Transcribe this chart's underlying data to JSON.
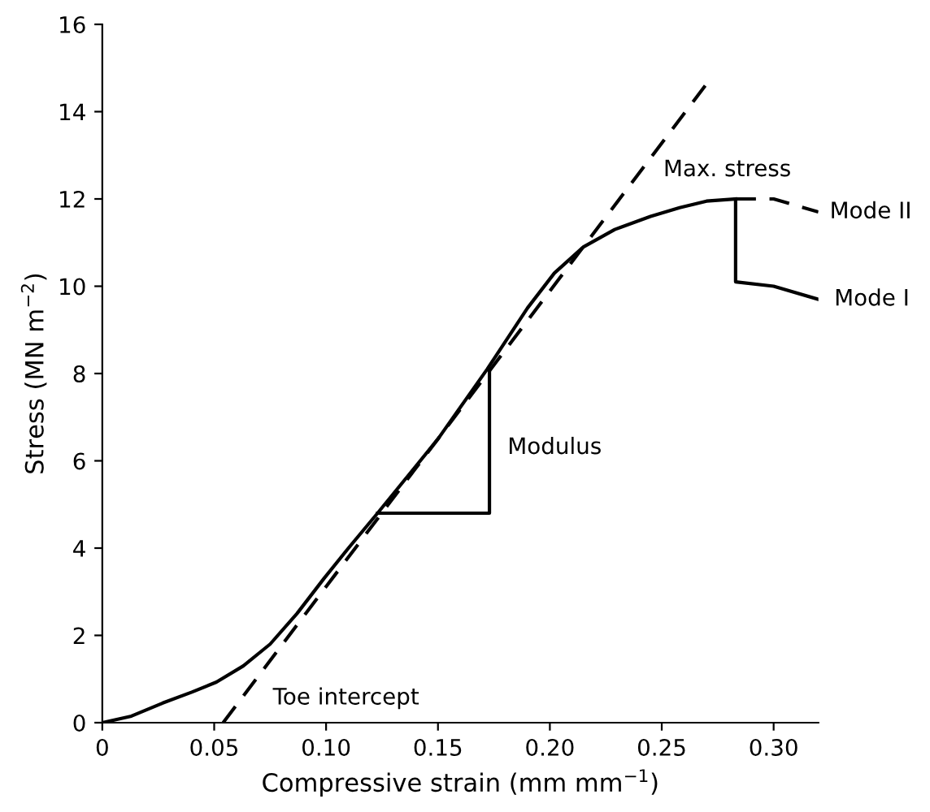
{
  "chart_data": {
    "type": "line",
    "xlabel": "Compressive strain (mm mm$^{−1}$)",
    "ylabel": "Stress (MN m$^{−2}$)",
    "xlim": [
      0,
      0.32
    ],
    "ylim": [
      0,
      16
    ],
    "xticks": [
      0,
      {
        "value": 0.05,
        "label": "0.05"
      },
      {
        "value": 0.1,
        "label": "0.10"
      },
      {
        "value": 0.15,
        "label": "0.15"
      },
      {
        "value": 0.2,
        "label": "0.20"
      },
      {
        "value": 0.25,
        "label": "0.25"
      },
      {
        "value": 0.3,
        "label": "0.30"
      }
    ],
    "yticks": [
      0,
      2,
      4,
      6,
      8,
      10,
      12,
      14,
      16
    ],
    "marker": "none",
    "series": [
      {
        "color": "#000000",
        "line_style": "solid",
        "x": [
          0,
          0.013,
          0.027,
          0.04,
          0.051,
          0.063,
          0.075,
          0.087,
          0.099,
          0.11,
          0.123,
          0.15,
          0.172,
          0.19,
          0.202,
          0.215,
          0.229,
          0.245,
          0.258,
          0.27,
          0.283
        ],
        "values": [
          0,
          0.15,
          0.45,
          0.7,
          0.93,
          1.3,
          1.8,
          2.5,
          3.3,
          4.0,
          4.8,
          6.5,
          8.1,
          9.5,
          10.3,
          10.9,
          11.3,
          11.6,
          11.8,
          11.95,
          12.0
        ]
      },
      {
        "color": "#000000",
        "line_style": "dashed",
        "x": [
          0.054,
          0.271
        ],
        "values": [
          0,
          14.7
        ]
      },
      {
        "color": "#000000",
        "line_style": "dashed",
        "x": [
          0.283,
          0.3,
          0.32
        ],
        "values": [
          12.0,
          12.0,
          11.7
        ]
      },
      {
        "color": "#000000",
        "line_style": "solid",
        "x": [
          0.283,
          0.283,
          0.3,
          0.32
        ],
        "values": [
          12.0,
          10.1,
          10.0,
          9.7
        ]
      },
      {
        "color": "#000000",
        "line_style": "solid",
        "x": [
          0.123,
          0.173,
          0.173
        ],
        "values": [
          4.8,
          4.8,
          8.1
        ]
      }
    ],
    "annotations": [
      {
        "text": "Toe intercept",
        "x": 0.054,
        "y": 0
      },
      {
        "text": "Modulus",
        "x": 0.173,
        "y": 6.3
      },
      {
        "text": "Max. stress",
        "x": 0.283,
        "y": 12.0
      },
      {
        "text": "Mode II",
        "x": 0.32,
        "y": 11.7
      },
      {
        "text": "Mode I",
        "x": 0.32,
        "y": 9.7
      }
    ]
  }
}
